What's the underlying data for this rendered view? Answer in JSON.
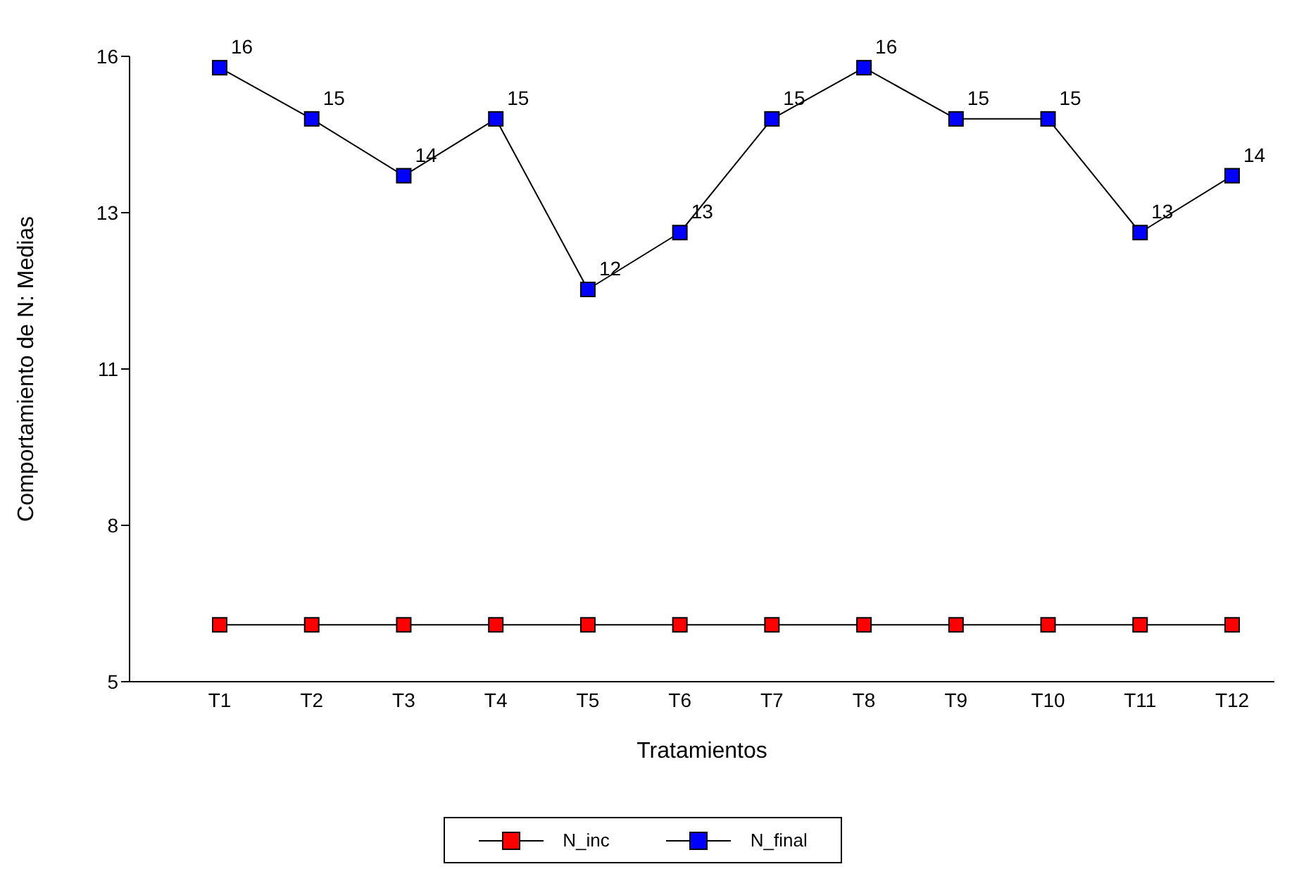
{
  "chart_data": {
    "type": "line",
    "xlabel": "Tratamientos",
    "ylabel": "Comportamiento de N: Medias",
    "categories": [
      "T1",
      "T2",
      "T3",
      "T4",
      "T5",
      "T6",
      "T7",
      "T8",
      "T9",
      "T10",
      "T11",
      "T12"
    ],
    "series": [
      {
        "name": "N_inc",
        "color": "#ff0000",
        "values": [
          6.0,
          6.0,
          6.0,
          6.0,
          6.0,
          6.0,
          6.0,
          6.0,
          6.0,
          6.0,
          6.0,
          6.0
        ]
      },
      {
        "name": "N_final",
        "color": "#0000ff",
        "values": [
          15.8,
          14.9,
          13.9,
          14.9,
          11.9,
          12.9,
          14.9,
          15.8,
          14.9,
          14.9,
          12.9,
          13.9
        ],
        "value_labels": [
          "16",
          "15",
          "14",
          "15",
          "12",
          "13",
          "15",
          "16",
          "15",
          "15",
          "13",
          "14"
        ]
      }
    ],
    "ylim": [
      5,
      16
    ],
    "yticks": [
      5,
      {
        "value": 7.75,
        "label": "8"
      },
      {
        "value": 10.5,
        "label": "11"
      },
      {
        "value": 13.25,
        "label": "13"
      },
      16
    ],
    "grid": false,
    "legend": "bottom",
    "marker": "square",
    "line_style": "solid"
  }
}
